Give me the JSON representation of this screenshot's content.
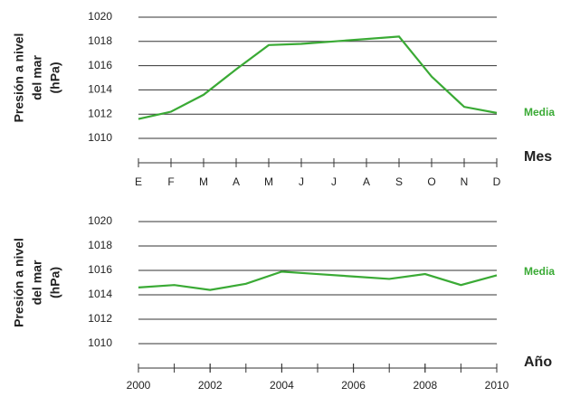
{
  "chart_data": [
    {
      "type": "line",
      "ylabel_lines": [
        "Presión a nivel",
        "del mar",
        "(hPa)"
      ],
      "xlabel": "Mes",
      "categories": [
        "E",
        "F",
        "M",
        "A",
        "M",
        "J",
        "J",
        "A",
        "S",
        "O",
        "N",
        "D"
      ],
      "series": [
        {
          "name": "Media",
          "color": "#3aaa35",
          "values": [
            1011.6,
            1012.2,
            1013.6,
            1015.7,
            1017.7,
            1017.8,
            1018.0,
            1018.2,
            1018.4,
            1015.1,
            1012.6,
            1012.1
          ]
        }
      ],
      "ylim": [
        1010,
        1020
      ],
      "yticks": [
        1010,
        1012,
        1014,
        1016,
        1018,
        1020
      ],
      "grid": true
    },
    {
      "type": "line",
      "ylabel_lines": [
        "Presión a nivel",
        "del mar",
        "(hPa)"
      ],
      "xlabel": "Año",
      "x": [
        2000,
        2001,
        2002,
        2003,
        2004,
        2005,
        2006,
        2007,
        2008,
        2009,
        2010
      ],
      "series": [
        {
          "name": "Media",
          "color": "#3aaa35",
          "values": [
            1014.6,
            1014.8,
            1014.4,
            1014.9,
            1015.9,
            1015.7,
            1015.5,
            1015.3,
            1015.7,
            1014.8,
            1015.6
          ]
        }
      ],
      "xlim": [
        2000,
        2010
      ],
      "xticks": [
        2000,
        2002,
        2004,
        2006,
        2008,
        2010
      ],
      "ylim": [
        1010,
        1020
      ],
      "yticks": [
        1010,
        1012,
        1014,
        1016,
        1018,
        1020
      ],
      "grid": true
    }
  ]
}
